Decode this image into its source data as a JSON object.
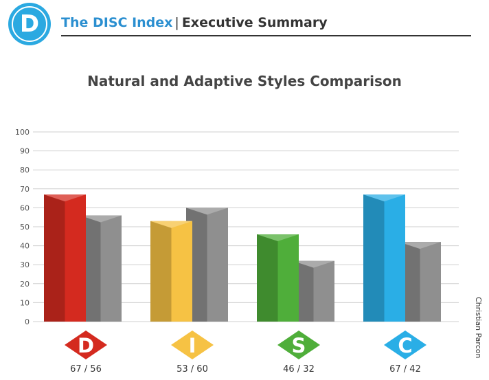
{
  "header": {
    "logo_letter": "D",
    "brand": "The DISC Index",
    "separator": "|",
    "subtitle": "Executive Summary"
  },
  "credit": "Christian Parcon",
  "colors": {
    "brand_blue": "#2ba9e1",
    "adaptive_gray": "#8f8f8f"
  },
  "chart_data": {
    "type": "bar",
    "title": "Natural and Adaptive Styles Comparison",
    "categories": [
      "D",
      "I",
      "S",
      "C"
    ],
    "series": [
      {
        "values": [
          67,
          53,
          46,
          67
        ]
      },
      {
        "values": [
          56,
          60,
          32,
          42
        ]
      }
    ],
    "category_colors": [
      "#d42a1f",
      "#f6c244",
      "#4fae3a",
      "#2aaee6"
    ],
    "value_labels": [
      "67 / 56",
      "53 / 60",
      "46 / 32",
      "67 / 42"
    ],
    "ylim": [
      0,
      100
    ],
    "yticks": [
      0,
      10,
      20,
      30,
      40,
      50,
      60,
      70,
      80,
      90,
      100
    ],
    "grid": true,
    "xlabel": "",
    "ylabel": ""
  }
}
